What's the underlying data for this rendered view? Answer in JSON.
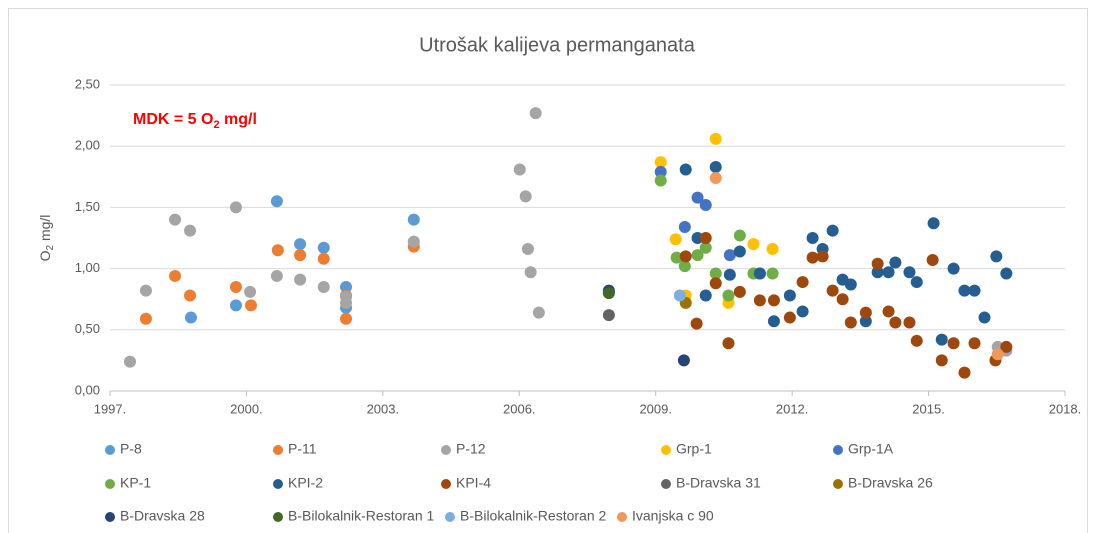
{
  "chart_data": {
    "type": "scatter",
    "title": "Utrošak kalijeva permanganata",
    "y_label": {
      "main": "O",
      "sub": "2",
      "tail": " mg/l"
    },
    "annotation": {
      "main": "MDK = 5 O",
      "sub": "2",
      "tail": " mg/l"
    },
    "xlim": [
      1997,
      2018
    ],
    "xticks": [
      {
        "value": 1997,
        "label": "1997."
      },
      {
        "value": 2000,
        "label": "2000."
      },
      {
        "value": 2003,
        "label": "2003."
      },
      {
        "value": 2006,
        "label": "2006."
      },
      {
        "value": 2009,
        "label": "2009."
      },
      {
        "value": 2012,
        "label": "2012."
      },
      {
        "value": 2015,
        "label": "2015."
      },
      {
        "value": 2018,
        "label": "2018."
      }
    ],
    "ylim": [
      0,
      2.5
    ],
    "yticks": [
      {
        "value": 0,
        "label": "0,00"
      },
      {
        "value": 0.5,
        "label": "0,50"
      },
      {
        "value": 1,
        "label": "1,00"
      },
      {
        "value": 1.5,
        "label": "1,50"
      },
      {
        "value": 2,
        "label": "2,00"
      },
      {
        "value": 2.5,
        "label": "2,50"
      }
    ],
    "grid": true,
    "legend": "bottom",
    "series": [
      {
        "name": "P-8",
        "color": "#5b9bd5",
        "x": [
          1998.78,
          1999.77,
          2000.67,
          2001.18,
          2001.7,
          2002.19,
          2002.19,
          2003.68
        ],
        "values": [
          0.6,
          0.7,
          1.55,
          1.2,
          1.17,
          0.85,
          0.68,
          1.4
        ]
      },
      {
        "name": "P-11",
        "color": "#ed7d31",
        "x": [
          1997.79,
          1998.43,
          1998.76,
          1999.77,
          2000.1,
          2000.69,
          2001.18,
          2001.7,
          2002.19,
          2002.19,
          2003.68
        ],
        "values": [
          0.59,
          0.94,
          0.78,
          0.85,
          0.7,
          1.15,
          1.11,
          1.08,
          0.59,
          0.78,
          1.18
        ]
      },
      {
        "name": "P-12",
        "color": "#a5a5a5",
        "x": [
          1997.44,
          1997.79,
          1998.43,
          1998.76,
          1999.77,
          2000.08,
          2000.67,
          2001.18,
          2001.7,
          2002.19,
          2002.19,
          2003.68,
          2006.01,
          2006.14,
          2006.19,
          2006.25,
          2006.36,
          2006.43,
          2016.52,
          2016.71
        ],
        "values": [
          0.24,
          0.82,
          1.4,
          1.31,
          1.5,
          0.81,
          0.94,
          0.91,
          0.85,
          0.77,
          0.72,
          1.22,
          1.81,
          1.59,
          1.16,
          0.97,
          2.27,
          0.64,
          0.36,
          0.33
        ]
      },
      {
        "name": "Grp-1",
        "color": "#ffc000",
        "x": [
          2009.11,
          2009.44,
          2009.66,
          2010.32,
          2010.6,
          2011.15,
          2011.57
        ],
        "values": [
          1.87,
          1.24,
          0.78,
          2.06,
          0.72,
          1.2,
          1.16
        ]
      },
      {
        "name": "Grp-1A",
        "color": "#4472c4",
        "x": [
          2009.11,
          2009.64,
          2009.92,
          2010.1,
          2010.63,
          2011.29
        ],
        "values": [
          1.79,
          1.34,
          1.58,
          1.52,
          1.11,
          0.96
        ]
      },
      {
        "name": "KP-1",
        "color": "#70ad47",
        "x": [
          2009.11,
          2009.46,
          2009.64,
          2009.92,
          2010.1,
          2010.32,
          2010.6,
          2010.85,
          2011.15,
          2011.57
        ],
        "values": [
          1.72,
          1.09,
          1.02,
          1.11,
          1.17,
          0.96,
          0.78,
          1.27,
          0.96,
          0.96
        ]
      },
      {
        "name": "KPI-2",
        "color": "#255e91",
        "x": [
          2009.66,
          2009.92,
          2010.1,
          2010.32,
          2010.63,
          2010.85,
          2011.29,
          2011.6,
          2011.95,
          2012.23,
          2012.45,
          2012.67,
          2012.89,
          2013.11,
          2013.29,
          2013.62,
          2013.88,
          2014.12,
          2014.27,
          2014.58,
          2014.74,
          2015.11,
          2015.29,
          2015.55,
          2015.79,
          2016.01,
          2016.23,
          2016.49,
          2016.71
        ],
        "values": [
          1.81,
          1.25,
          0.78,
          1.83,
          0.95,
          1.14,
          0.96,
          0.57,
          0.78,
          0.65,
          1.25,
          1.16,
          1.31,
          0.91,
          0.87,
          0.57,
          0.97,
          0.97,
          1.05,
          0.97,
          0.89,
          1.37,
          0.42,
          1.0,
          0.82,
          0.82,
          0.6,
          1.1,
          0.96
        ]
      },
      {
        "name": "KPI-4",
        "color": "#9e480e",
        "x": [
          2009.66,
          2009.9,
          2010.1,
          2010.32,
          2010.6,
          2010.85,
          2011.29,
          2011.6,
          2011.95,
          2012.23,
          2012.45,
          2012.67,
          2012.89,
          2013.11,
          2013.29,
          2013.62,
          2013.88,
          2014.12,
          2014.27,
          2014.58,
          2014.74,
          2015.09,
          2015.29,
          2015.55,
          2015.79,
          2016.01,
          2016.47,
          2016.71
        ],
        "values": [
          1.1,
          0.55,
          1.25,
          0.88,
          0.39,
          0.81,
          0.74,
          0.74,
          0.6,
          0.89,
          1.09,
          1.1,
          0.82,
          0.75,
          0.56,
          0.64,
          1.04,
          0.65,
          0.56,
          0.56,
          0.41,
          1.07,
          0.25,
          0.39,
          0.15,
          0.39,
          0.25,
          0.36
        ]
      },
      {
        "name": "B-Dravska 31",
        "color": "#636363",
        "x": [
          2007.97,
          2007.97
        ],
        "values": [
          0.81,
          0.62
        ]
      },
      {
        "name": "B-Dravska 26",
        "color": "#997300",
        "x": [
          2009.66
        ],
        "values": [
          0.72
        ]
      },
      {
        "name": "B-Dravska 28",
        "color": "#264478",
        "x": [
          2007.97,
          2009.62
        ],
        "values": [
          0.82,
          0.25
        ]
      },
      {
        "name": "B-Bilokalnik-Restoran 1",
        "color": "#43682b",
        "x": [
          2007.97
        ],
        "values": [
          0.8
        ]
      },
      {
        "name": "B-Bilokalnik-Restoran 2",
        "color": "#7cafdd",
        "x": [
          2009.53
        ],
        "values": [
          0.78
        ]
      },
      {
        "name": "Ivanjska c 90",
        "color": "#f1975a",
        "x": [
          2010.32,
          2016.52
        ],
        "values": [
          1.74,
          0.3
        ]
      }
    ]
  }
}
